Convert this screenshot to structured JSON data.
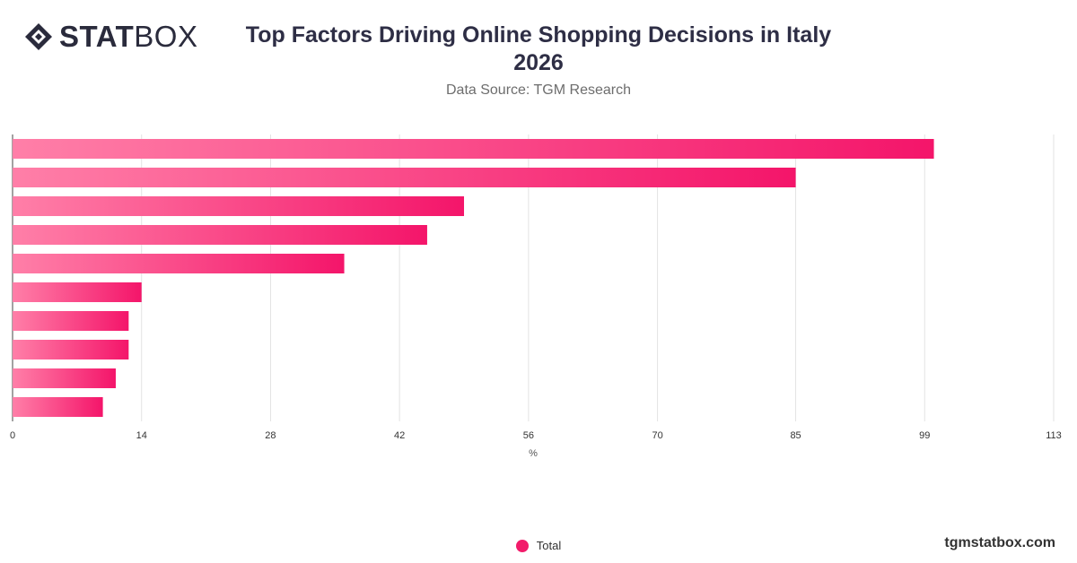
{
  "brand": {
    "logo_bold": "STAT",
    "logo_light": "BOX",
    "logo_icon": "diamond-logo-icon"
  },
  "title_line1": "Top Factors Driving Online Shopping Decisions in Italy",
  "title_line2": "2026",
  "subtitle": "Data Source: TGM Research",
  "footer": {
    "site": "tgmstatbox.com"
  },
  "colors": {
    "bar_start": "#ff7fa8",
    "bar_end": "#f4156a",
    "grid": "#e3e3e3",
    "axis": "#444444",
    "text": "#333333"
  },
  "chart_data": {
    "type": "bar",
    "orientation": "horizontal",
    "title": "Top Factors Driving Online Shopping Decisions in Italy 2026",
    "subtitle": "Data Source: TGM Research",
    "xlabel": "%",
    "ylabel": "",
    "xlim": [
      0,
      113
    ],
    "x_ticks": [
      0,
      14,
      28,
      42,
      56,
      70,
      85,
      99,
      113
    ],
    "categories": [
      "",
      "",
      "",
      "",
      "",
      "",
      "",
      "",
      "",
      ""
    ],
    "series": [
      {
        "name": "Total",
        "values": [
          100,
          85,
          49,
          45,
          36,
          14,
          12.6,
          12.6,
          11.2,
          9.8
        ]
      }
    ],
    "grid": true,
    "legend": "bottom-center"
  }
}
